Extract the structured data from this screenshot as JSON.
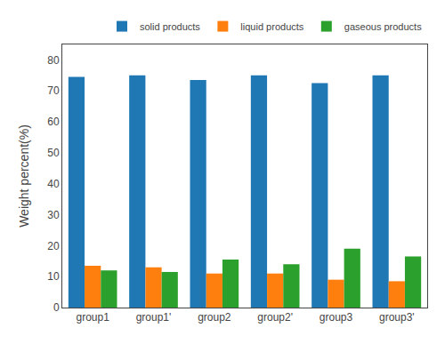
{
  "chart_data": {
    "type": "bar",
    "categories": [
      "group1",
      "group1'",
      "group2",
      "group2'",
      "group3",
      "group3'"
    ],
    "series": [
      {
        "name": "solid products",
        "values": [
          74.5,
          75.0,
          73.5,
          75.0,
          72.5,
          75.0
        ]
      },
      {
        "name": "liquid products",
        "values": [
          13.5,
          13.0,
          11.0,
          11.0,
          9.0,
          8.5
        ]
      },
      {
        "name": "gaseous products",
        "values": [
          12.0,
          11.5,
          15.5,
          14.0,
          19.0,
          16.5
        ]
      }
    ],
    "ylabel": "Weight percent(%)",
    "ylim": [
      0,
      85
    ],
    "yticks": [
      0,
      10,
      20,
      30,
      40,
      50,
      60,
      70,
      80
    ],
    "grid": false,
    "legend": "upper right"
  }
}
